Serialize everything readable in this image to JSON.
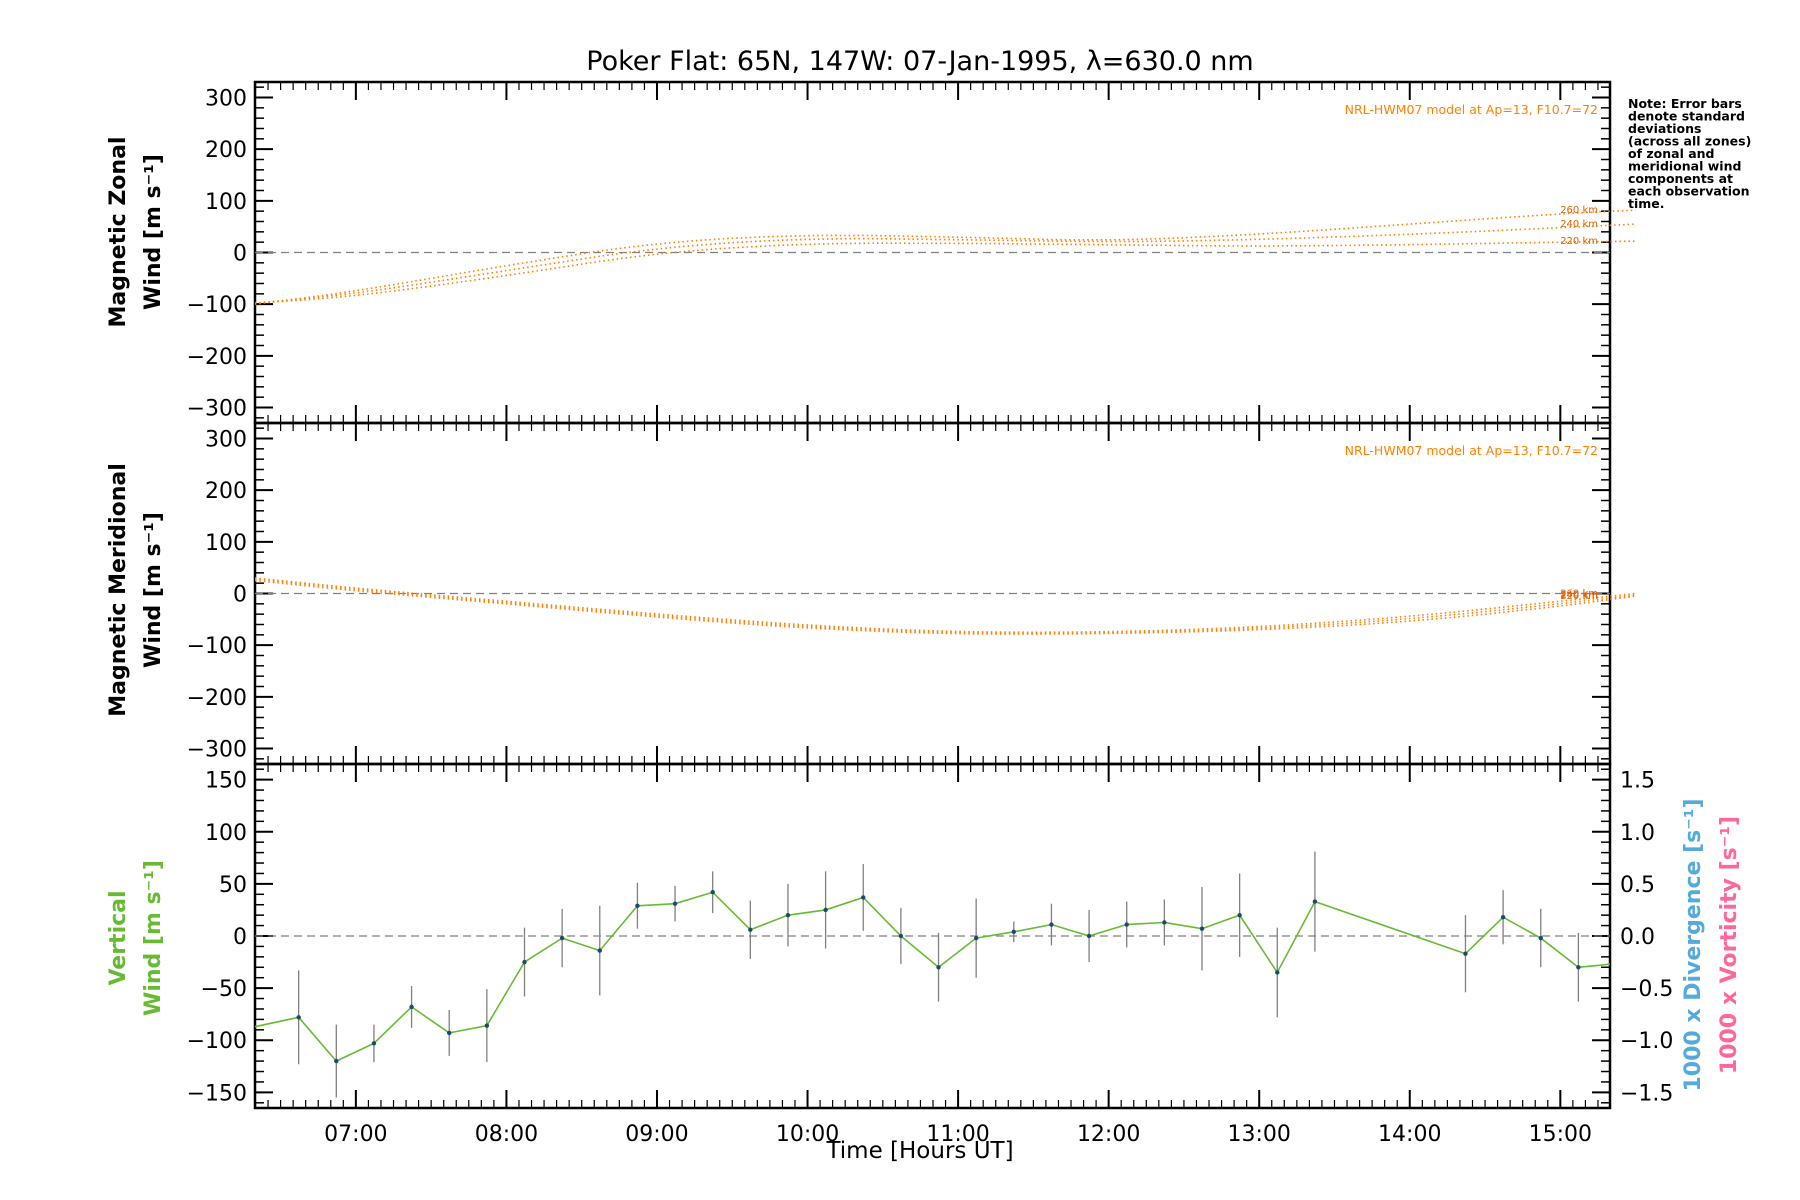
{
  "chart_data": [
    {
      "type": "line",
      "title": "Poker Flat: 65N, 147W: 07-Jan-1995, λ=630.0 nm",
      "ylabel": [
        "Magnetic Zonal",
        "Wind [m s⁻¹]"
      ],
      "ylim": [
        -330,
        330
      ],
      "yticks": [
        -300,
        -200,
        -100,
        0,
        100,
        200,
        300
      ],
      "model_label": "NRL-HWM07 model at Ap=13, F10.7=72",
      "series": [
        {
          "name": "260 km",
          "x": [
            6.33,
            7.0,
            8.0,
            9.0,
            10.0,
            11.0,
            12.0,
            13.0,
            14.0,
            15.0,
            15.5
          ],
          "values": [
            -100,
            -75,
            -25,
            20,
            35,
            30,
            22,
            35,
            55,
            75,
            82
          ]
        },
        {
          "name": "240 km",
          "x": [
            6.33,
            7.0,
            8.0,
            9.0,
            10.0,
            11.0,
            12.0,
            13.0,
            14.0,
            15.0,
            15.5
          ],
          "values": [
            -98,
            -80,
            -35,
            10,
            28,
            25,
            20,
            25,
            35,
            48,
            55
          ]
        },
        {
          "name": "220 km",
          "x": [
            6.33,
            7.0,
            8.0,
            9.0,
            10.0,
            11.0,
            12.0,
            13.0,
            14.0,
            15.0,
            15.5
          ],
          "values": [
            -98,
            -85,
            -45,
            0,
            18,
            18,
            15,
            12,
            15,
            20,
            22
          ]
        }
      ]
    },
    {
      "type": "line",
      "ylabel": [
        "Magnetic Meridional",
        "Wind [m s⁻¹]"
      ],
      "ylim": [
        -330,
        330
      ],
      "yticks": [
        -300,
        -200,
        -100,
        0,
        100,
        200,
        300
      ],
      "model_label": "NRL-HWM07 model at Ap=13, F10.7=72",
      "series": [
        {
          "name": "260 km",
          "x": [
            6.33,
            7.0,
            8.0,
            9.0,
            10.0,
            11.0,
            12.0,
            13.0,
            14.0,
            15.0,
            15.5
          ],
          "values": [
            30,
            10,
            -15,
            -40,
            -62,
            -75,
            -75,
            -65,
            -45,
            -15,
            0
          ]
        },
        {
          "name": "240 km",
          "x": [
            6.33,
            7.0,
            8.0,
            9.0,
            10.0,
            11.0,
            12.0,
            13.0,
            14.0,
            15.0,
            15.5
          ],
          "values": [
            28,
            8,
            -18,
            -43,
            -65,
            -77,
            -77,
            -68,
            -50,
            -20,
            -3
          ]
        },
        {
          "name": "220 km",
          "x": [
            6.33,
            7.0,
            8.0,
            9.0,
            10.0,
            11.0,
            12.0,
            13.0,
            14.0,
            15.0,
            15.5
          ],
          "values": [
            25,
            5,
            -20,
            -46,
            -68,
            -79,
            -78,
            -71,
            -55,
            -25,
            -5
          ]
        }
      ]
    },
    {
      "type": "line",
      "ylabel": [
        "Vertical",
        "Wind [m s⁻¹]"
      ],
      "ylabel_right": [
        "1000 x Divergence [s⁻¹]",
        "1000 x Vorticity [s⁻¹]"
      ],
      "xlabel": "Time [Hours UT]",
      "ylim": [
        -165,
        165
      ],
      "yticks": [
        -150,
        -100,
        -50,
        0,
        50,
        100,
        150
      ],
      "ylim_right": [
        -1.65,
        1.65
      ],
      "yticks_right": [
        "1.5",
        "1.0",
        "0.5",
        "0.0",
        "−0.5",
        "−1.0",
        "−1.5"
      ],
      "xlim": [
        6.33,
        15.33
      ],
      "xticks": [
        "07:00",
        "08:00",
        "09:00",
        "10:00",
        "11:00",
        "12:00",
        "13:00",
        "14:00",
        "15:00"
      ],
      "series": [
        {
          "name": "Vertical Wind",
          "x": [
            6.33,
            6.62,
            6.87,
            7.12,
            7.37,
            7.62,
            7.87,
            8.12,
            8.37,
            8.62,
            8.87,
            9.12,
            9.37,
            9.62,
            9.87,
            10.12,
            10.37,
            10.62,
            10.87,
            11.12,
            11.37,
            11.62,
            11.87,
            12.12,
            12.37,
            12.62,
            12.87,
            13.12,
            13.37,
            14.37,
            14.62,
            14.87,
            15.12,
            15.33
          ],
          "values": [
            -87,
            -78,
            -120,
            -103,
            -68,
            -93,
            -86,
            -25,
            -2,
            -14,
            29,
            31,
            42,
            6,
            20,
            25,
            37,
            0,
            -30,
            -2,
            4,
            11,
            0,
            11,
            13,
            7,
            20,
            -35,
            33,
            -17,
            18,
            -2,
            -30,
            -27
          ],
          "errors": [
            0,
            45,
            35,
            18,
            20,
            22,
            35,
            33,
            28,
            43,
            22,
            17,
            20,
            28,
            30,
            37,
            32,
            27,
            33,
            38,
            10,
            20,
            25,
            22,
            22,
            40,
            40,
            43,
            48,
            37,
            26,
            28,
            33,
            0
          ]
        }
      ]
    }
  ],
  "note": [
    "Note: Error bars",
    "denote standard",
    "deviations",
    "(across all zones)",
    "of zonal and",
    "meridional wind",
    "components at",
    "each observation",
    "time."
  ],
  "colors": {
    "model": "#ff8000",
    "vertical": "#66bb33",
    "divergence": "#55aadd",
    "vorticity": "#ff6699",
    "errorbar": "#808080",
    "point": "#1a4a70"
  }
}
